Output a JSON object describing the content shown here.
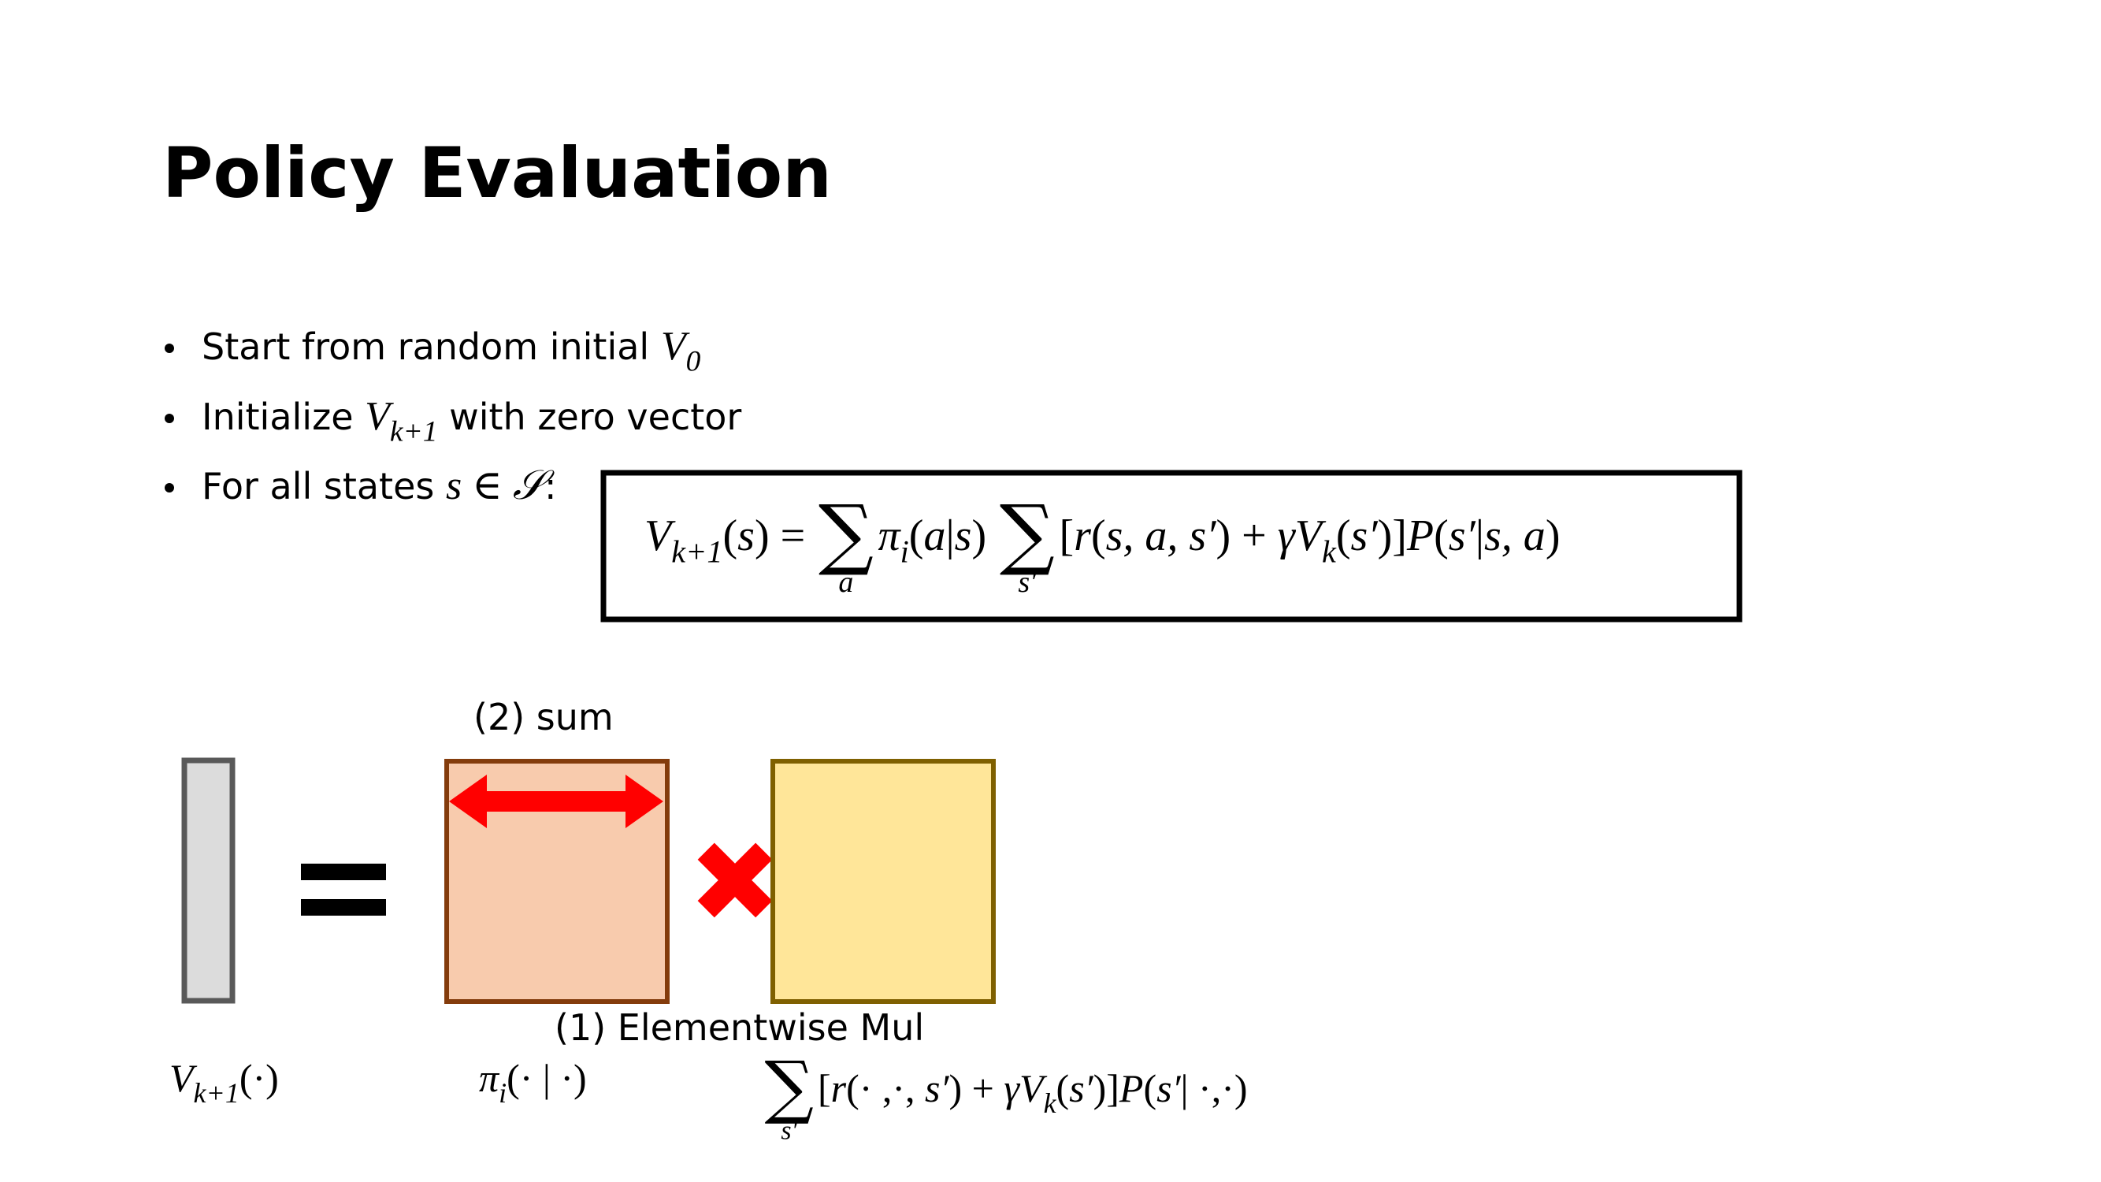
{
  "title": "Policy Evaluation",
  "bullets": [
    [
      {
        "style": "text",
        "text": "Start from random initial "
      },
      {
        "style": "math",
        "text": "V"
      },
      {
        "style": "sub",
        "text": "0"
      }
    ],
    [
      {
        "style": "text",
        "text": "Initialize "
      },
      {
        "style": "math",
        "text": "V"
      },
      {
        "style": "sub",
        "text": "k+1"
      },
      {
        "style": "text",
        "text": " with zero vector"
      }
    ],
    [
      {
        "style": "text",
        "text": "For all states "
      },
      {
        "style": "math",
        "text": "s"
      },
      {
        "style": "roman",
        "text": " ∈ "
      },
      {
        "style": "math",
        "text": "𝒮"
      },
      {
        "style": "text",
        "text": ":"
      }
    ]
  ],
  "formula": [
    {
      "style": "math",
      "text": "V"
    },
    {
      "style": "sub",
      "text": "k+1"
    },
    {
      "style": "roman",
      "text": "("
    },
    {
      "style": "math",
      "text": "s"
    },
    {
      "style": "roman",
      "text": ") = "
    },
    {
      "style": "bigop",
      "text": "∑"
    },
    {
      "style": "under",
      "text": "a"
    },
    {
      "style": "math",
      "text": "π"
    },
    {
      "style": "sub",
      "text": "i"
    },
    {
      "style": "roman",
      "text": "("
    },
    {
      "style": "math",
      "text": "a"
    },
    {
      "style": "roman",
      "text": "|"
    },
    {
      "style": "math",
      "text": "s"
    },
    {
      "style": "roman",
      "text": ") "
    },
    {
      "style": "bigop",
      "text": "∑"
    },
    {
      "style": "under",
      "text": "s′"
    },
    {
      "style": "roman",
      "text": "["
    },
    {
      "style": "math",
      "text": "r"
    },
    {
      "style": "roman",
      "text": "("
    },
    {
      "style": "math",
      "text": "s, a, s′"
    },
    {
      "style": "roman",
      "text": ") + "
    },
    {
      "style": "math",
      "text": "γV"
    },
    {
      "style": "sub",
      "text": "k"
    },
    {
      "style": "roman",
      "text": "("
    },
    {
      "style": "math",
      "text": "s′"
    },
    {
      "style": "roman",
      "text": ")]"
    },
    {
      "style": "math",
      "text": "P"
    },
    {
      "style": "roman",
      "text": "("
    },
    {
      "style": "math",
      "text": "s′"
    },
    {
      "style": "roman",
      "text": "|"
    },
    {
      "style": "math",
      "text": "s, a"
    },
    {
      "style": "roman",
      "text": ")"
    }
  ],
  "diagram": {
    "sum_label": "(2) sum",
    "mul_label": "(1) Elementwise Mul",
    "value_label": [
      {
        "style": "math",
        "text": "V"
      },
      {
        "style": "sub",
        "text": "k+1"
      },
      {
        "style": "roman",
        "text": "(·)"
      }
    ],
    "policy_label": [
      {
        "style": "math",
        "text": "π"
      },
      {
        "style": "sub",
        "text": "i"
      },
      {
        "style": "roman",
        "text": "(· | ·)"
      }
    ],
    "return_label": [
      {
        "style": "bigop",
        "text": "∑"
      },
      {
        "style": "under",
        "text": "s′"
      },
      {
        "style": "roman",
        "text": "["
      },
      {
        "style": "math",
        "text": "r"
      },
      {
        "style": "roman",
        "text": "(· ,·, "
      },
      {
        "style": "math",
        "text": "s′"
      },
      {
        "style": "roman",
        "text": ") + "
      },
      {
        "style": "math",
        "text": "γV"
      },
      {
        "style": "sub",
        "text": "k"
      },
      {
        "style": "roman",
        "text": "("
      },
      {
        "style": "math",
        "text": "s′"
      },
      {
        "style": "roman",
        "text": ")]"
      },
      {
        "style": "math",
        "text": "P"
      },
      {
        "style": "roman",
        "text": "("
      },
      {
        "style": "math",
        "text": "s′"
      },
      {
        "style": "roman",
        "text": "| ·,·)"
      }
    ]
  }
}
